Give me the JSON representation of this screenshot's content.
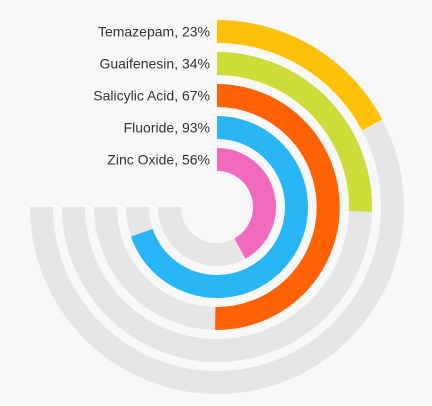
{
  "chart_data": {
    "type": "radial-bar",
    "max_value": 100,
    "track_color": "#e6e6e6",
    "series": [
      {
        "name": "Temazepam",
        "label": "Temazepam, 23%",
        "value": 23,
        "color": "#ffc107"
      },
      {
        "name": "Guaifenesin",
        "label": "Guaifenesin, 34%",
        "value": 34,
        "color": "#cddc39"
      },
      {
        "name": "Salicylic Acid",
        "label": "Salicylic Acid, 67%",
        "value": 67,
        "color": "#ff6105"
      },
      {
        "name": "Fluoride",
        "label": "Fluoride, 93%",
        "value": 93,
        "color": "#29b6f6"
      },
      {
        "name": "Zinc Oxide",
        "label": "Zinc Oxide, 56%",
        "value": 56,
        "color": "#f06bbd"
      }
    ]
  }
}
